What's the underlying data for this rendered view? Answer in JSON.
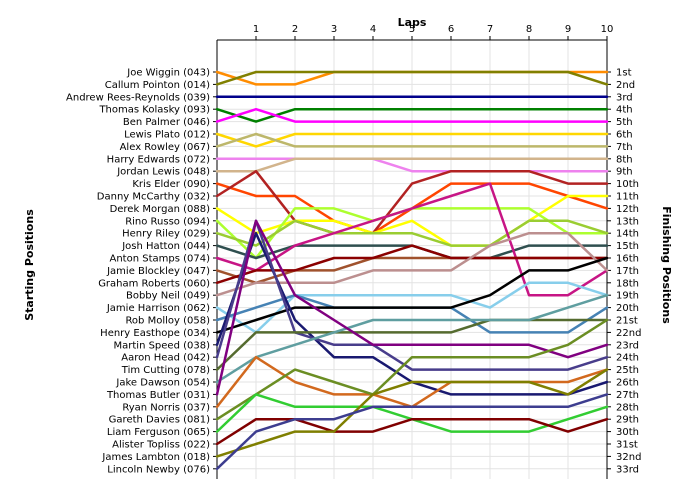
{
  "chart_data": {
    "type": "line",
    "title": "",
    "x_axis_title": "Laps",
    "y_axis_left_title": "Starting Positions",
    "y_axis_right_title": "Finishing Positions",
    "x": [
      0,
      1,
      2,
      3,
      4,
      5,
      6,
      7,
      8,
      9,
      10
    ],
    "x_tick_labels": [
      "1",
      "2",
      "3",
      "4",
      "5",
      "6",
      "7",
      "8",
      "9",
      "10"
    ],
    "grid": true,
    "positions_count": 33,
    "left_labels": [
      "Joe Wiggin (043)",
      "Callum Pointon (014)",
      "Andrew Rees-Reynolds (039)",
      "Thomas Kolasky (093)",
      "Ben Palmer (046)",
      "Lewis Plato (012)",
      "Alex Rowley (067)",
      "Harry Edwards (072)",
      "Jordan Lewis (048)",
      "Kris Elder (090)",
      "Danny McCarthy (032)",
      "Derek Morgan (088)",
      "Rino Russo (094)",
      "Henry Riley (029)",
      "Josh Hatton (044)",
      "Anton Stamps (074)",
      "Jamie Blockley (047)",
      "Graham Roberts (060)",
      "Bobby Neil (049)",
      "Jamie Harrison (062)",
      "Rob Molloy (058)",
      "Henry Easthope (034)",
      "Martin Speed (038)",
      "Aaron Head (042)",
      "Tim Cutting (078)",
      "Jake Dawson (054)",
      "Thomas Butler (031)",
      "Ryan Norris (037)",
      "Gareth Davies (081)",
      "Liam Ferguson (065)",
      "Alister Topliss (022)",
      "James Lambton (018)",
      "Lincoln Newby (076)"
    ],
    "right_labels": [
      "1st",
      "2nd",
      "3rd",
      "4th",
      "5th",
      "6th",
      "7th",
      "8th",
      "9th",
      "10th",
      "11th",
      "12th",
      "13th",
      "14th",
      "15th",
      "16th",
      "17th",
      "18th",
      "19th",
      "20th",
      "21st",
      "22nd",
      "23rd",
      "24th",
      "25th",
      "26th",
      "27th",
      "28th",
      "29th",
      "30th",
      "31st",
      "32nd",
      "33rd"
    ],
    "series": [
      {
        "color": "#ff8c00",
        "values": [
          1,
          2,
          2,
          1,
          1,
          1,
          1,
          1,
          1,
          1,
          1
        ]
      },
      {
        "color": "#808000",
        "values": [
          2,
          1,
          1,
          1,
          1,
          1,
          1,
          1,
          1,
          1,
          2
        ]
      },
      {
        "color": "#00008b",
        "values": [
          3,
          3,
          3,
          3,
          3,
          3,
          3,
          3,
          3,
          3,
          3
        ]
      },
      {
        "color": "#008000",
        "values": [
          4,
          5,
          4,
          4,
          4,
          4,
          4,
          4,
          4,
          4,
          4
        ]
      },
      {
        "color": "#ff00ff",
        "values": [
          5,
          4,
          5,
          5,
          5,
          5,
          5,
          5,
          5,
          5,
          5
        ]
      },
      {
        "color": "#ffd700",
        "values": [
          6,
          7,
          6,
          6,
          6,
          6,
          6,
          6,
          6,
          6,
          6
        ]
      },
      {
        "color": "#bdb76b",
        "values": [
          7,
          6,
          7,
          7,
          7,
          7,
          7,
          7,
          7,
          7,
          7
        ]
      },
      {
        "color": "#ee82ee",
        "values": [
          8,
          8,
          8,
          8,
          8,
          9,
          9,
          9,
          9,
          9,
          9
        ]
      },
      {
        "color": "#d2b48c",
        "values": [
          9,
          9,
          8,
          8,
          8,
          8,
          8,
          8,
          8,
          8,
          8
        ]
      },
      {
        "color": "#ff4500",
        "values": [
          10,
          11,
          11,
          13,
          14,
          12,
          10,
          10,
          10,
          11,
          12
        ]
      },
      {
        "color": "#b22222",
        "values": [
          11,
          9,
          13,
          14,
          14,
          10,
          9,
          9,
          9,
          10,
          10
        ]
      },
      {
        "color": "#ffff00",
        "values": [
          12,
          14,
          13,
          13,
          14,
          13,
          15,
          15,
          13,
          11,
          11
        ]
      },
      {
        "color": "#adff2f",
        "values": [
          13,
          16,
          12,
          12,
          13,
          12,
          12,
          12,
          12,
          14,
          14
        ]
      },
      {
        "color": "#9acd32",
        "values": [
          14,
          15,
          13,
          14,
          14,
          14,
          15,
          15,
          13,
          13,
          14
        ]
      },
      {
        "color": "#2f4f4f",
        "values": [
          15,
          16,
          15,
          15,
          15,
          15,
          16,
          16,
          15,
          15,
          15
        ]
      },
      {
        "color": "#c71585",
        "values": [
          16,
          17,
          15,
          14,
          13,
          12,
          11,
          10,
          19,
          19,
          17
        ]
      },
      {
        "color": "#a0522d",
        "values": [
          17,
          18,
          17,
          17,
          16,
          16,
          16,
          16,
          16,
          16,
          16
        ]
      },
      {
        "color": "#8b0000",
        "values": [
          18,
          17,
          17,
          16,
          16,
          15,
          16,
          16,
          16,
          16,
          16
        ]
      },
      {
        "color": "#bc8f8f",
        "values": [
          19,
          18,
          18,
          18,
          17,
          17,
          17,
          15,
          14,
          14,
          17
        ]
      },
      {
        "color": "#87ceeb",
        "values": [
          20,
          22,
          19,
          19,
          19,
          19,
          19,
          20,
          18,
          18,
          19
        ]
      },
      {
        "color": "#4682b4",
        "values": [
          21,
          20,
          19,
          20,
          20,
          20,
          20,
          22,
          22,
          22,
          20
        ]
      },
      {
        "color": "#000000",
        "values": [
          22,
          21,
          20,
          20,
          20,
          20,
          20,
          19,
          17,
          17,
          16
        ]
      },
      {
        "color": "#191970",
        "values": [
          23,
          14,
          21,
          24,
          24,
          26,
          27,
          27,
          27,
          27,
          26
        ]
      },
      {
        "color": "#483d8b",
        "values": [
          24,
          13,
          22,
          23,
          23,
          25,
          25,
          25,
          25,
          25,
          24
        ]
      },
      {
        "color": "#556b2f",
        "values": [
          25,
          22,
          22,
          22,
          22,
          22,
          22,
          21,
          21,
          21,
          21
        ]
      },
      {
        "color": "#5f9ea0",
        "values": [
          26,
          24,
          23,
          22,
          21,
          21,
          21,
          21,
          21,
          20,
          19
        ]
      },
      {
        "color": "#800080",
        "values": [
          27,
          13,
          19,
          21,
          23,
          23,
          23,
          23,
          23,
          24,
          23
        ]
      },
      {
        "color": "#d2691e",
        "values": [
          28,
          24,
          26,
          27,
          27,
          28,
          26,
          26,
          26,
          26,
          25
        ]
      },
      {
        "color": "#6b8e23",
        "values": [
          29,
          27,
          25,
          26,
          27,
          24,
          24,
          24,
          24,
          23,
          21
        ]
      },
      {
        "color": "#32cd32",
        "values": [
          30,
          27,
          28,
          28,
          28,
          29,
          30,
          30,
          30,
          29,
          28
        ]
      },
      {
        "color": "#800000",
        "values": [
          31,
          29,
          29,
          30,
          30,
          29,
          29,
          29,
          29,
          30,
          29
        ]
      },
      {
        "color": "#7f7f00",
        "values": [
          32,
          31,
          30,
          30,
          27,
          26,
          26,
          26,
          26,
          27,
          25
        ]
      },
      {
        "color": "#3d3d8f",
        "values": [
          33,
          30,
          29,
          29,
          28,
          28,
          28,
          28,
          28,
          28,
          27
        ]
      }
    ]
  }
}
